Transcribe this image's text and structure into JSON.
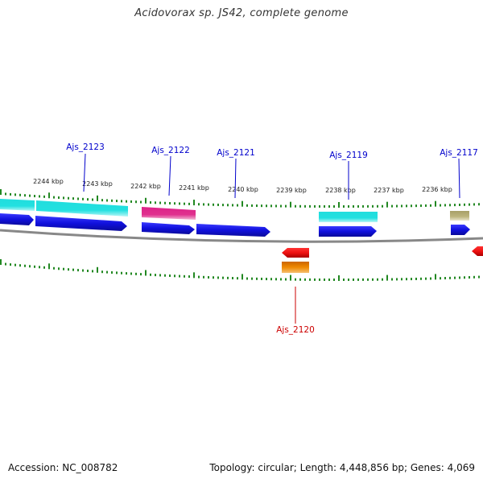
{
  "title": "Acidovorax sp. JS42, complete genome",
  "footer": {
    "accession": "Accession: NC_008782",
    "topology": "Topology: circular; Length: 4,448,856 bp; Genes: 4,069"
  },
  "ticks": [
    "2244 kbp",
    "2243 kbp",
    "2242 kbp",
    "2241 kbp",
    "2240 kbp",
    "2239 kbp",
    "2238 kbp",
    "2237 kbp",
    "2236 kbp"
  ],
  "gene_labels": [
    {
      "id": "Ajs_2123",
      "color": "#0000cc"
    },
    {
      "id": "Ajs_2122",
      "color": "#0000cc"
    },
    {
      "id": "Ajs_2121",
      "color": "#0000cc"
    },
    {
      "id": "Ajs_2119",
      "color": "#0000cc"
    },
    {
      "id": "Ajs_2117",
      "color": "#0000cc"
    },
    {
      "id": "Ajs_2120",
      "color": "#cc0000"
    }
  ],
  "colors": {
    "cds": "#1010dd",
    "cog_cyan": "#22dddd",
    "cog_magenta": "#dd2288",
    "cog_olive": "#b8b078",
    "reverse_cds": "#ee1111",
    "reverse_cog": "#ee8800",
    "backbone": "#888888",
    "ruler": "#228822"
  }
}
